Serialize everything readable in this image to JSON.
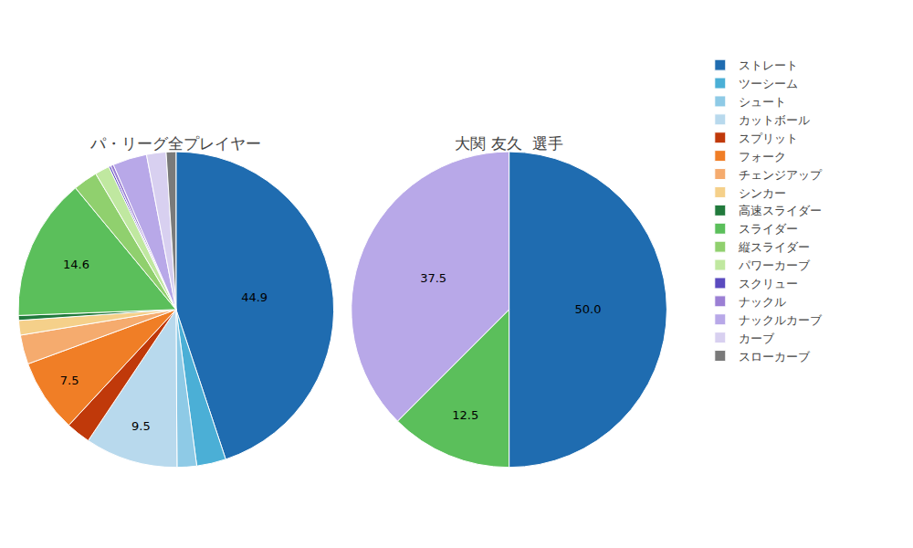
{
  "chart_data": [
    {
      "type": "pie",
      "title": "パ・リーグ全プレイヤー",
      "categories": [
        "ストレート",
        "ツーシーム",
        "シュート",
        "カットボール",
        "スプリット",
        "フォーク",
        "チェンジアップ",
        "シンカー",
        "高速スライダー",
        "スライダー",
        "縦スライダー",
        "パワーカーブ",
        "スクリュー",
        "ナックル",
        "ナックルカーブ",
        "カーブ",
        "スローカーブ"
      ],
      "values": [
        44.9,
        3.0,
        2.0,
        9.5,
        2.5,
        7.5,
        3.0,
        1.5,
        0.5,
        14.6,
        2.5,
        1.5,
        0.2,
        0.3,
        3.5,
        2.0,
        1.0
      ],
      "value_labels": [
        "44.9",
        null,
        null,
        "9.5",
        null,
        "7.5",
        null,
        null,
        null,
        "14.6",
        null,
        null,
        null,
        null,
        null,
        null,
        null
      ],
      "colors": [
        "#1f6cb0",
        "#4bafd6",
        "#8ecae6",
        "#b8d9ed",
        "#c0390a",
        "#f07e26",
        "#f5ab6e",
        "#f5d08a",
        "#217a3c",
        "#5bbf5b",
        "#90d06e",
        "#c0e8a0",
        "#5b4bbf",
        "#9b7fd4",
        "#b8a8e8",
        "#d8d0f0",
        "#7a7a7a"
      ],
      "data_labels": true,
      "legend": "right"
    },
    {
      "type": "pie",
      "title": "大関 友久  選手",
      "categories": [
        "ストレート",
        "スライダー",
        "ナックルカーブ"
      ],
      "values": [
        50.0,
        12.5,
        37.5
      ],
      "value_labels": [
        "50.0",
        "12.5",
        "37.5"
      ],
      "colors": [
        "#1f6cb0",
        "#5bbf5b",
        "#b8a8e8"
      ],
      "data_labels": true,
      "legend": "right"
    }
  ]
}
